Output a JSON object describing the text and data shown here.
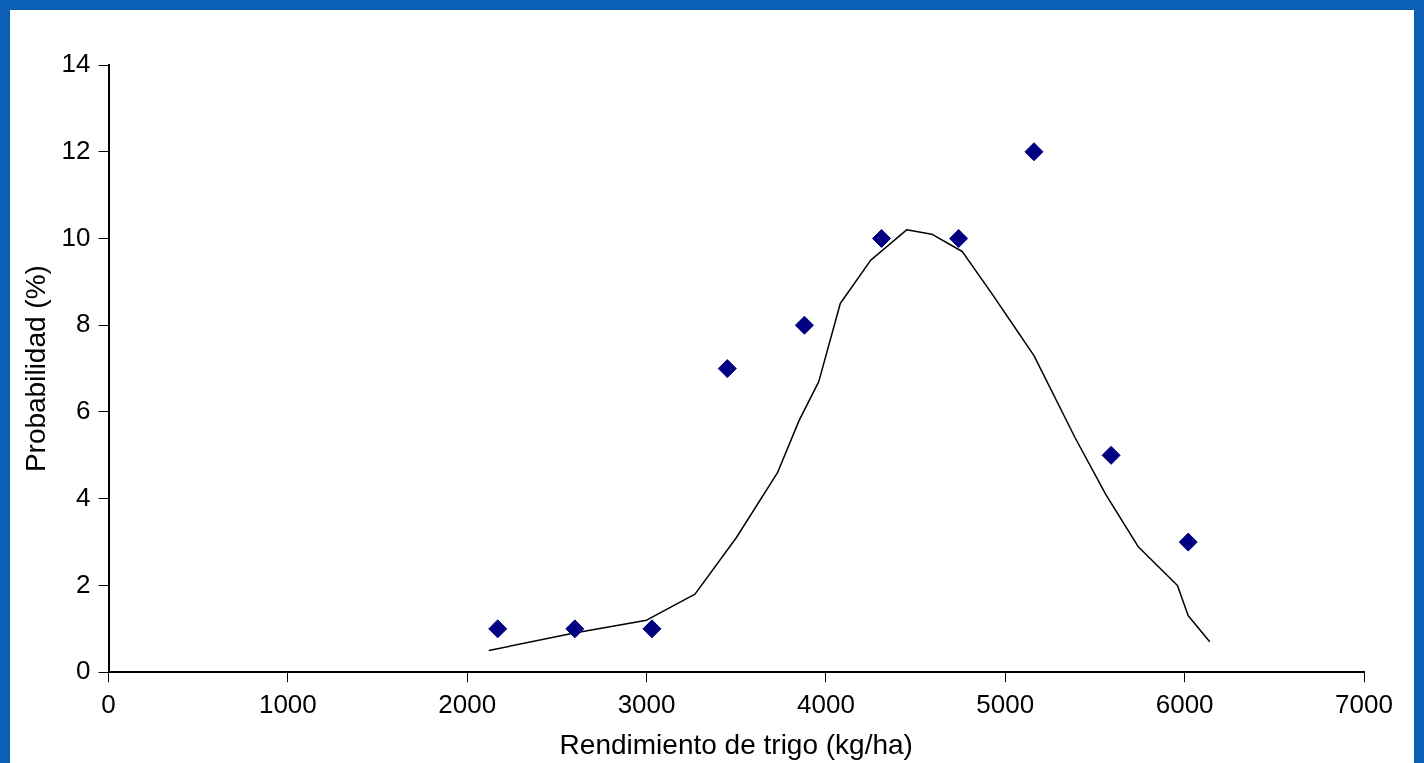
{
  "chart_data": {
    "type": "scatter",
    "xlabel": "Rendimiento de trigo (kg/ha)",
    "ylabel": "Probabilidad (%)",
    "xlim": [
      0,
      7000
    ],
    "xticks": [
      0,
      1000,
      2000,
      3000,
      4000,
      5000,
      6000,
      7000
    ],
    "ylim": [
      0,
      14
    ],
    "yticks": [
      0,
      2,
      4,
      6,
      8,
      10,
      12,
      14
    ],
    "grid": false,
    "legend": false,
    "series": [
      {
        "color": "#000080",
        "marker": "diamond",
        "x": [
          2170,
          2600,
          3030,
          3450,
          3880,
          4310,
          4740,
          5160,
          5590,
          6020
        ],
        "values": [
          1,
          1,
          1,
          7,
          8,
          10,
          10,
          12,
          5,
          3
        ]
      },
      {
        "type": "line",
        "color": "#000000",
        "marker": "none",
        "line_style": "solid",
        "x": [
          2120,
          2590,
          3000,
          3270,
          3500,
          3730,
          3850,
          3960,
          4080,
          4250,
          4450,
          4590,
          4760,
          4930,
          5160,
          5390,
          5560,
          5740,
          5960,
          6020,
          6140
        ],
        "values": [
          0.5,
          0.9,
          1.2,
          1.8,
          3.1,
          4.6,
          5.8,
          6.7,
          8.5,
          9.5,
          10.2,
          10.1,
          9.7,
          8.7,
          7.3,
          5.4,
          4.1,
          2.9,
          2,
          1.3,
          0.7
        ]
      }
    ]
  }
}
